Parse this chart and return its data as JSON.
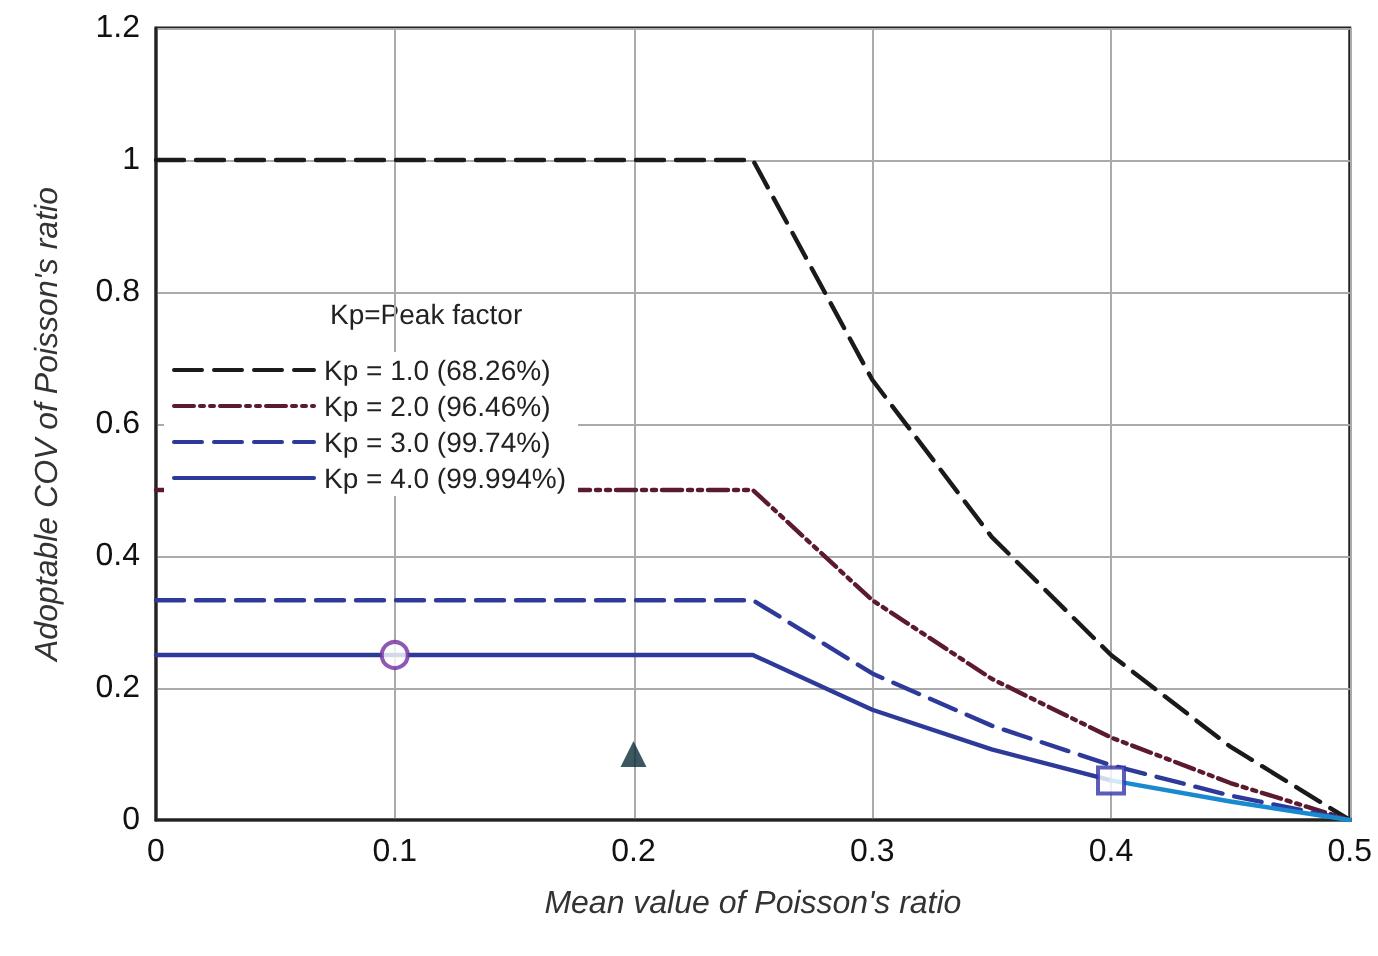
{
  "chart_data": {
    "type": "line",
    "xlabel": "Mean value of Poisson's ratio",
    "ylabel": "Adoptable COV of Poisson's ratio",
    "legend_title": "Kp=Peak factor",
    "xlim": [
      0,
      0.5
    ],
    "xticks": [
      0,
      0.1,
      0.2,
      0.3,
      0.4,
      0.5
    ],
    "ylim": [
      0,
      1.2
    ],
    "yticks": [
      0,
      0.2,
      0.4,
      0.6,
      0.8,
      1,
      1.2
    ],
    "grid": true,
    "legend": "left",
    "marker": "none",
    "series": [
      {
        "name": "Kp = 1.0 (68.26%)",
        "color": "#1a1a1a",
        "line_style": "dashed",
        "x": [
          0,
          0.25,
          0.3,
          0.35,
          0.4,
          0.45,
          0.5
        ],
        "values": [
          1,
          1,
          0.667,
          0.429,
          0.25,
          0.111,
          0
        ]
      },
      {
        "name": "Kp = 2.0 (96.46%)",
        "color": "#5c1a2e",
        "line_style": "dotted",
        "x": [
          0,
          0.25,
          0.3,
          0.35,
          0.4,
          0.45,
          0.5
        ],
        "values": [
          0.5,
          0.5,
          0.333,
          0.214,
          0.125,
          0.056,
          0
        ]
      },
      {
        "name": "Kp = 3.0 (99.74%)",
        "color": "#2e3a9a",
        "line_style": "dashed",
        "x": [
          0,
          0.25,
          0.3,
          0.35,
          0.4,
          0.45,
          0.5
        ],
        "values": [
          0.333,
          0.333,
          0.222,
          0.143,
          0.083,
          0.037,
          0
        ]
      },
      {
        "name": "Kp = 4.0 (99.994%)",
        "color": "#2e3a9a",
        "line_style": "solid",
        "x": [
          0,
          0.25,
          0.3,
          0.35,
          0.4
        ],
        "values": [
          0.25,
          0.25,
          0.167,
          0.107,
          0.06
        ]
      },
      {
        "color": "#1a8ad0",
        "line_style": "solid",
        "x": [
          0.4,
          0.45,
          0.5
        ],
        "values": [
          0.06,
          0.028,
          0
        ]
      },
      {
        "type": "scatter",
        "marker": "circle",
        "color": "#7030a0",
        "x": [
          0.1
        ],
        "values": [
          0.25
        ]
      },
      {
        "type": "scatter",
        "marker": "triangle",
        "color": "#0d2d3a",
        "x": [
          0.2
        ],
        "values": [
          0.1
        ]
      },
      {
        "type": "scatter",
        "marker": "square",
        "color": "#3333aa",
        "x": [
          0.4
        ],
        "values": [
          0.06
        ]
      }
    ]
  }
}
